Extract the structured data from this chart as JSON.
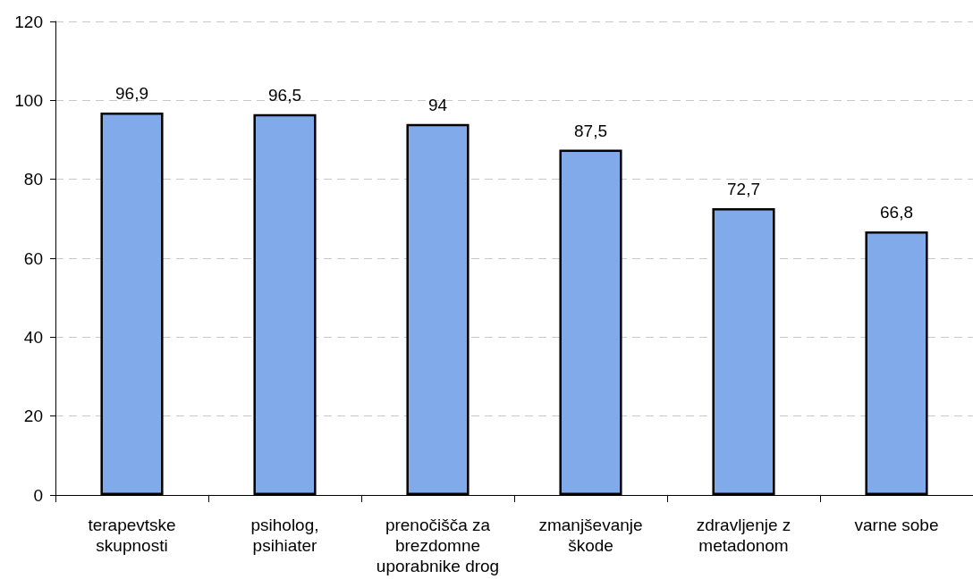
{
  "chart_data": {
    "type": "bar",
    "categories": [
      "terapevtske skupnosti",
      "psiholog, psihiater",
      "prenočišča za brezdomne uporabnike drog",
      "zmanjševanje škode",
      "zdravljenje z metadonom",
      "varne sobe"
    ],
    "values": [
      96.9,
      96.5,
      94,
      87.5,
      72.7,
      66.8
    ],
    "value_labels": [
      "96,9",
      "96,5",
      "94",
      "87,5",
      "72,7",
      "66,8"
    ],
    "color": "#80aaea",
    "ylim": [
      0,
      120
    ],
    "yticks": [
      0,
      20,
      40,
      60,
      80,
      100,
      120
    ],
    "grid": "y"
  }
}
